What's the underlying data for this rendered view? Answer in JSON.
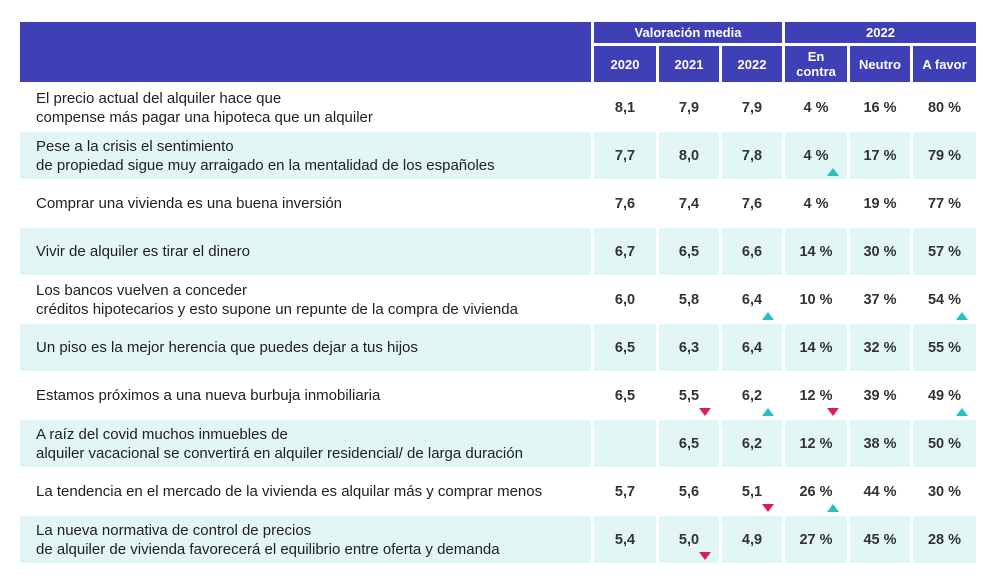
{
  "header": {
    "group_valoracion": "Valoración media",
    "group_2022": "2022",
    "years": [
      "2020",
      "2021",
      "2022"
    ],
    "opinions": [
      "En contra",
      "Neutro",
      "A favor"
    ]
  },
  "rows": [
    {
      "label": [
        "El precio actual del alquiler hace que",
        "compense más pagar una hipoteca que un alquiler"
      ],
      "values": [
        "8,1",
        "7,9",
        "7,9",
        "4 %",
        "16 %",
        "80 %"
      ],
      "trends": [
        null,
        null,
        null,
        null,
        null,
        null
      ]
    },
    {
      "label": [
        "Pese a la crisis el sentimiento",
        "de propiedad sigue muy arraigado en la mentalidad de los españoles"
      ],
      "values": [
        "7,7",
        "8,0",
        "7,8",
        "4 %",
        "17 %",
        "79 %"
      ],
      "trends": [
        null,
        null,
        null,
        "up",
        null,
        null
      ]
    },
    {
      "label": [
        "Comprar una vivienda es una buena inversión"
      ],
      "values": [
        "7,6",
        "7,4",
        "7,6",
        "4 %",
        "19 %",
        "77 %"
      ],
      "trends": [
        null,
        null,
        null,
        null,
        null,
        null
      ]
    },
    {
      "label": [
        "Vivir de alquiler es tirar el dinero"
      ],
      "values": [
        "6,7",
        "6,5",
        "6,6",
        "14 %",
        "30 %",
        "57 %"
      ],
      "trends": [
        null,
        null,
        null,
        null,
        null,
        null
      ]
    },
    {
      "label": [
        "Los bancos vuelven a conceder",
        "créditos hipotecarios y esto supone un repunte de la compra de vivienda"
      ],
      "values": [
        "6,0",
        "5,8",
        "6,4",
        "10 %",
        "37 %",
        "54 %"
      ],
      "trends": [
        null,
        null,
        "up",
        null,
        null,
        "up"
      ]
    },
    {
      "label": [
        "Un piso es la mejor herencia que puedes dejar a tus hijos"
      ],
      "values": [
        "6,5",
        "6,3",
        "6,4",
        "14 %",
        "32 %",
        "55 %"
      ],
      "trends": [
        null,
        null,
        null,
        null,
        null,
        null
      ]
    },
    {
      "label": [
        "Estamos próximos a una nueva burbuja inmobiliaria"
      ],
      "values": [
        "6,5",
        "5,5",
        "6,2",
        "12 %",
        "39 %",
        "49 %"
      ],
      "trends": [
        null,
        "down",
        "up",
        "down",
        null,
        "up"
      ]
    },
    {
      "label": [
        "A raíz del covid muchos inmuebles de",
        "alquiler vacacional se convertirá en alquiler residencial/ de larga duración"
      ],
      "values": [
        "",
        "6,5",
        "6,2",
        "12 %",
        "38 %",
        "50 %"
      ],
      "trends": [
        null,
        null,
        null,
        null,
        null,
        null
      ]
    },
    {
      "label": [
        "La tendencia en el mercado de la vivienda es alquilar más y comprar menos"
      ],
      "values": [
        "5,7",
        "5,6",
        "5,1",
        "26 %",
        "44 %",
        "30 %"
      ],
      "trends": [
        null,
        null,
        "down",
        "up",
        null,
        null
      ]
    },
    {
      "label": [
        "La nueva normativa de control de precios",
        "de alquiler de vivienda favorecerá el equilibrio entre oferta y demanda"
      ],
      "values": [
        "5,4",
        "5,0",
        "4,9",
        "27 %",
        "45 %",
        "28 %"
      ],
      "trends": [
        null,
        "down",
        null,
        null,
        null,
        null
      ]
    }
  ],
  "colors": {
    "header_bg": "#3f3fb6",
    "alt_row": "#e2f6f6",
    "trend_up": "#27bfc0",
    "trend_down": "#e0195f"
  }
}
